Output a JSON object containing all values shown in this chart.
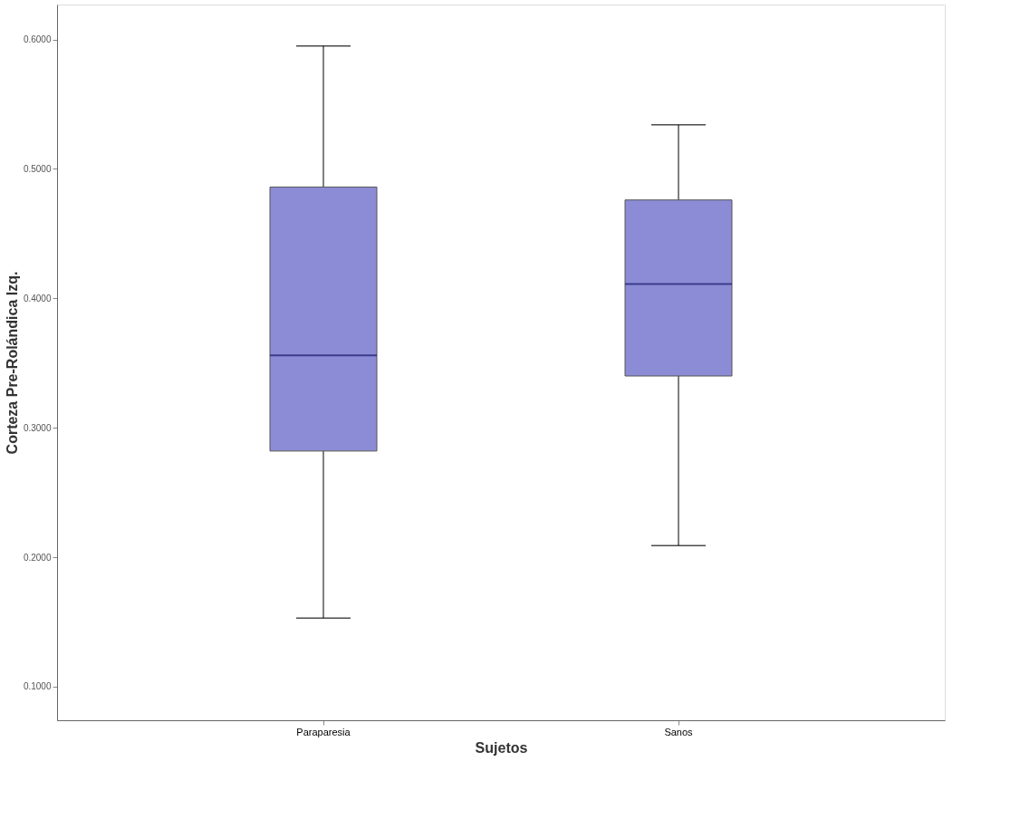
{
  "chart_data": {
    "type": "box",
    "xlabel": "Sujetos",
    "ylabel": "Corteza Pre-Rolándica Izq.",
    "categories": [
      "Paraparesia",
      "Sanos"
    ],
    "boxes": [
      {
        "low": 0.153,
        "q1": 0.282,
        "median": 0.356,
        "q3": 0.486,
        "high": 0.595
      },
      {
        "low": 0.209,
        "q1": 0.34,
        "median": 0.411,
        "q3": 0.476,
        "high": 0.534
      }
    ],
    "color": "#8c8cd6",
    "ylim": [
      0.074,
      0.627
    ],
    "yticks": [
      {
        "value": 0.1,
        "label": "0.1000"
      },
      {
        "value": 0.2,
        "label": "0.2000"
      },
      {
        "value": 0.3,
        "label": "0.3000"
      },
      {
        "value": 0.4,
        "label": "0.4000"
      },
      {
        "value": 0.5,
        "label": "0.5000"
      },
      {
        "value": 0.6,
        "label": "0.6000"
      }
    ],
    "grid": false
  }
}
